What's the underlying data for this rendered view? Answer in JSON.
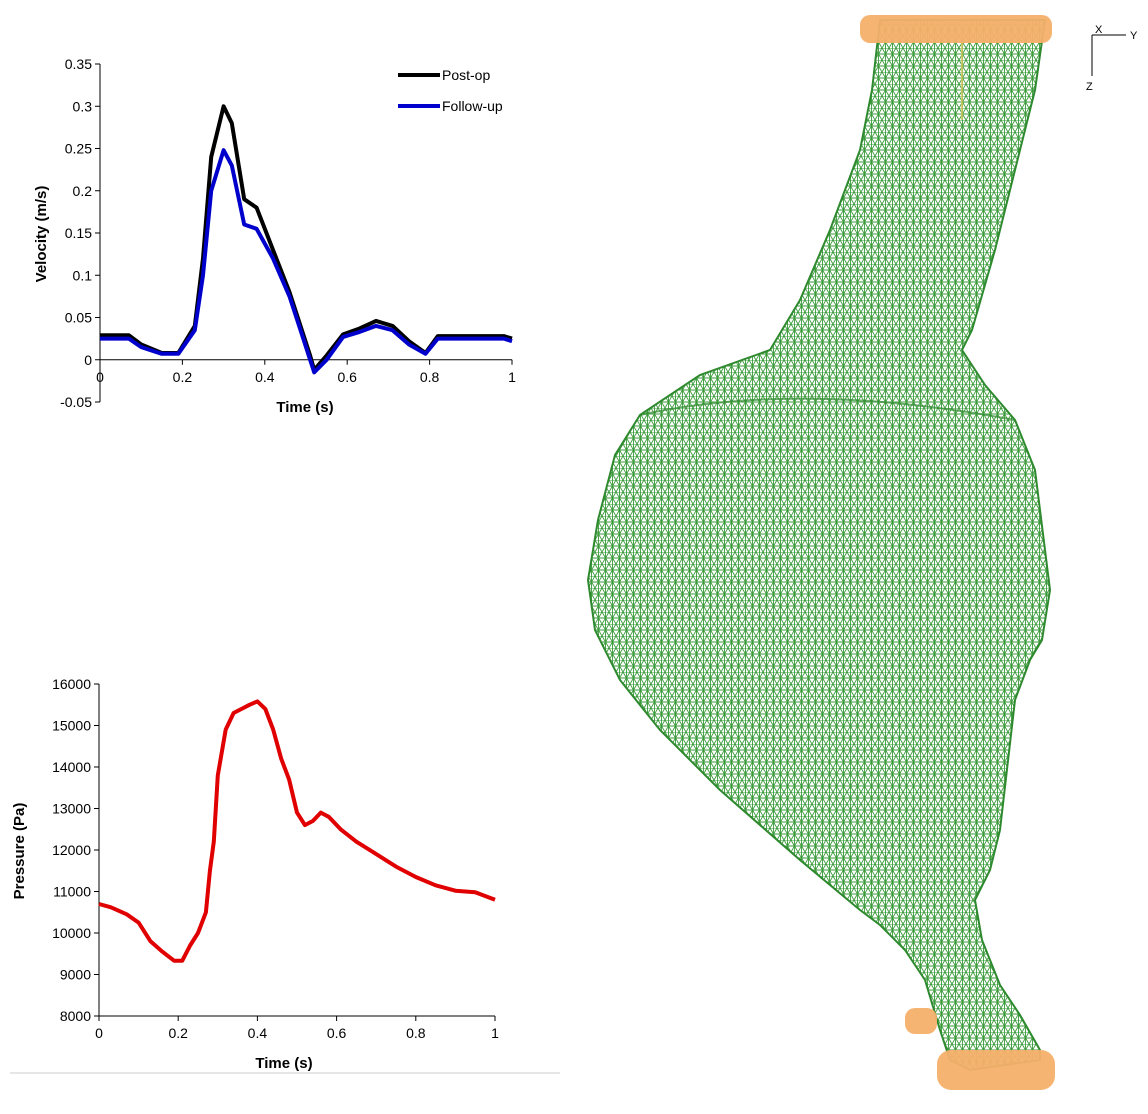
{
  "chart_data": [
    {
      "type": "line",
      "title": "",
      "xlabel": "Time (s)",
      "ylabel": "Velocity (m/s)",
      "xlim": [
        0,
        1
      ],
      "ylim": [
        -0.05,
        0.35
      ],
      "x_ticks": [
        0,
        0.2,
        0.4,
        0.6,
        0.8,
        1
      ],
      "x_tick_labels": [
        "0",
        "0.2",
        "0.4",
        "0.6",
        "0.8",
        "1"
      ],
      "y_ticks": [
        -0.05,
        0,
        0.05,
        0.1,
        0.15,
        0.2,
        0.25,
        0.3,
        0.35
      ],
      "y_tick_labels": [
        "-0.05",
        "0",
        "0.05",
        "0.1",
        "0.15",
        "0.2",
        "0.25",
        "0.3",
        "0.35"
      ],
      "grid": false,
      "legend": "top-right",
      "series": [
        {
          "name": "Post-op",
          "color": "#000000",
          "points": [
            [
              0,
              0.029
            ],
            [
              0.07,
              0.029
            ],
            [
              0.1,
              0.018
            ],
            [
              0.15,
              0.008
            ],
            [
              0.19,
              0.008
            ],
            [
              0.23,
              0.04
            ],
            [
              0.25,
              0.12
            ],
            [
              0.27,
              0.24
            ],
            [
              0.3,
              0.3
            ],
            [
              0.32,
              0.28
            ],
            [
              0.35,
              0.19
            ],
            [
              0.38,
              0.18
            ],
            [
              0.42,
              0.13
            ],
            [
              0.46,
              0.08
            ],
            [
              0.49,
              0.035
            ],
            [
              0.51,
              0.005
            ],
            [
              0.52,
              -0.012
            ],
            [
              0.55,
              0.005
            ],
            [
              0.59,
              0.03
            ],
            [
              0.63,
              0.037
            ],
            [
              0.67,
              0.046
            ],
            [
              0.71,
              0.04
            ],
            [
              0.75,
              0.022
            ],
            [
              0.79,
              0.008
            ],
            [
              0.82,
              0.028
            ],
            [
              0.9,
              0.028
            ],
            [
              0.98,
              0.028
            ],
            [
              1.0,
              0.025
            ]
          ]
        },
        {
          "name": "Follow-up",
          "color": "#0000cc",
          "points": [
            [
              0,
              0.025
            ],
            [
              0.07,
              0.025
            ],
            [
              0.1,
              0.015
            ],
            [
              0.15,
              0.007
            ],
            [
              0.19,
              0.007
            ],
            [
              0.23,
              0.035
            ],
            [
              0.25,
              0.1
            ],
            [
              0.27,
              0.2
            ],
            [
              0.3,
              0.248
            ],
            [
              0.32,
              0.23
            ],
            [
              0.35,
              0.16
            ],
            [
              0.38,
              0.155
            ],
            [
              0.42,
              0.12
            ],
            [
              0.46,
              0.075
            ],
            [
              0.49,
              0.03
            ],
            [
              0.51,
              0.0
            ],
            [
              0.52,
              -0.015
            ],
            [
              0.55,
              0.0
            ],
            [
              0.59,
              0.027
            ],
            [
              0.63,
              0.033
            ],
            [
              0.67,
              0.04
            ],
            [
              0.71,
              0.035
            ],
            [
              0.75,
              0.018
            ],
            [
              0.79,
              0.007
            ],
            [
              0.82,
              0.025
            ],
            [
              0.9,
              0.025
            ],
            [
              0.98,
              0.025
            ],
            [
              1.0,
              0.022
            ]
          ]
        }
      ]
    },
    {
      "type": "line",
      "title": "",
      "xlabel": "Time (s)",
      "ylabel": "Pressure (Pa)",
      "xlim": [
        0,
        1
      ],
      "ylim": [
        8000,
        16000
      ],
      "x_ticks": [
        0,
        0.2,
        0.4,
        0.6,
        0.8,
        1
      ],
      "x_tick_labels": [
        "0",
        "0.2",
        "0.4",
        "0.6",
        "0.8",
        "1"
      ],
      "y_ticks": [
        8000,
        9000,
        10000,
        11000,
        12000,
        13000,
        14000,
        15000,
        16000
      ],
      "y_tick_labels": [
        "8000",
        "9000",
        "10000",
        "11000",
        "12000",
        "13000",
        "14000",
        "15000",
        "16000"
      ],
      "grid": false,
      "legend": "none",
      "series": [
        {
          "color": "#e00000",
          "points": [
            [
              0,
              10700
            ],
            [
              0.03,
              10620
            ],
            [
              0.07,
              10450
            ],
            [
              0.1,
              10250
            ],
            [
              0.13,
              9800
            ],
            [
              0.16,
              9550
            ],
            [
              0.19,
              9330
            ],
            [
              0.21,
              9330
            ],
            [
              0.23,
              9700
            ],
            [
              0.25,
              10000
            ],
            [
              0.27,
              10500
            ],
            [
              0.28,
              11500
            ],
            [
              0.29,
              12200
            ],
            [
              0.3,
              13800
            ],
            [
              0.32,
              14900
            ],
            [
              0.34,
              15300
            ],
            [
              0.36,
              15400
            ],
            [
              0.38,
              15500
            ],
            [
              0.4,
              15580
            ],
            [
              0.42,
              15400
            ],
            [
              0.44,
              14900
            ],
            [
              0.46,
              14200
            ],
            [
              0.48,
              13700
            ],
            [
              0.5,
              12900
            ],
            [
              0.52,
              12600
            ],
            [
              0.54,
              12700
            ],
            [
              0.56,
              12900
            ],
            [
              0.58,
              12800
            ],
            [
              0.61,
              12500
            ],
            [
              0.65,
              12200
            ],
            [
              0.7,
              11900
            ],
            [
              0.75,
              11600
            ],
            [
              0.8,
              11350
            ],
            [
              0.85,
              11150
            ],
            [
              0.9,
              11020
            ],
            [
              0.95,
              10980
            ],
            [
              1.0,
              10800
            ]
          ]
        }
      ]
    }
  ],
  "mesh_view": {
    "mesh_color": "#3a9a3a",
    "inlet_color": "#f5b06c",
    "triad": {
      "x_label": "X",
      "y_label": "Y",
      "z_label": "Z"
    }
  }
}
